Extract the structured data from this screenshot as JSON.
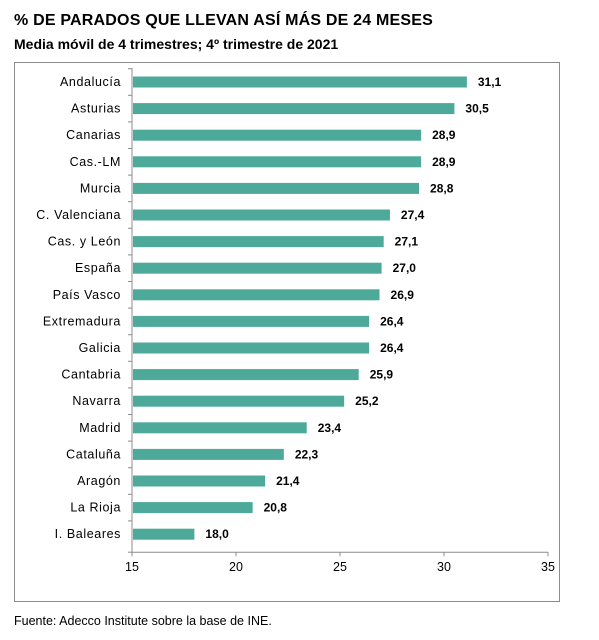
{
  "title": "% DE PARADOS QUE LLEVAN ASÍ MÁS DE 24 MESES",
  "subtitle": "Media móvil de 4 trimestres; 4º trimestre de 2021",
  "footer": "Fuente: Adecco Institute sobre la base de INE.",
  "colors": {
    "bar": "#4daa9a",
    "axis": "#8c8c8c"
  },
  "chart_data": {
    "type": "bar",
    "orientation": "horizontal",
    "categories": [
      "Andalucía",
      "Asturias",
      "Canarias",
      "Cas.-LM",
      "Murcia",
      "C. Valenciana",
      "Cas. y León",
      "España",
      "País Vasco",
      "Extremadura",
      "Galicia",
      "Cantabria",
      "Navarra",
      "Madrid",
      "Cataluña",
      "Aragón",
      "La Rioja",
      "I. Baleares"
    ],
    "values": [
      31.1,
      30.5,
      28.9,
      28.9,
      28.8,
      27.4,
      27.1,
      27.0,
      26.9,
      26.4,
      26.4,
      25.9,
      25.2,
      23.4,
      22.3,
      21.4,
      20.8,
      18.0
    ],
    "value_labels": [
      "31,1",
      "30,5",
      "28,9",
      "28,9",
      "28,8",
      "27,4",
      "27,1",
      "27,0",
      "26,9",
      "26,4",
      "26,4",
      "25,9",
      "25,2",
      "23,4",
      "22,3",
      "21,4",
      "20,8",
      "18,0"
    ],
    "xlim": [
      15,
      35
    ],
    "xticks": [
      15,
      20,
      25,
      30,
      35
    ],
    "xtick_labels": [
      "15",
      "20",
      "25",
      "30",
      "35"
    ],
    "grid": false,
    "legend": false
  }
}
